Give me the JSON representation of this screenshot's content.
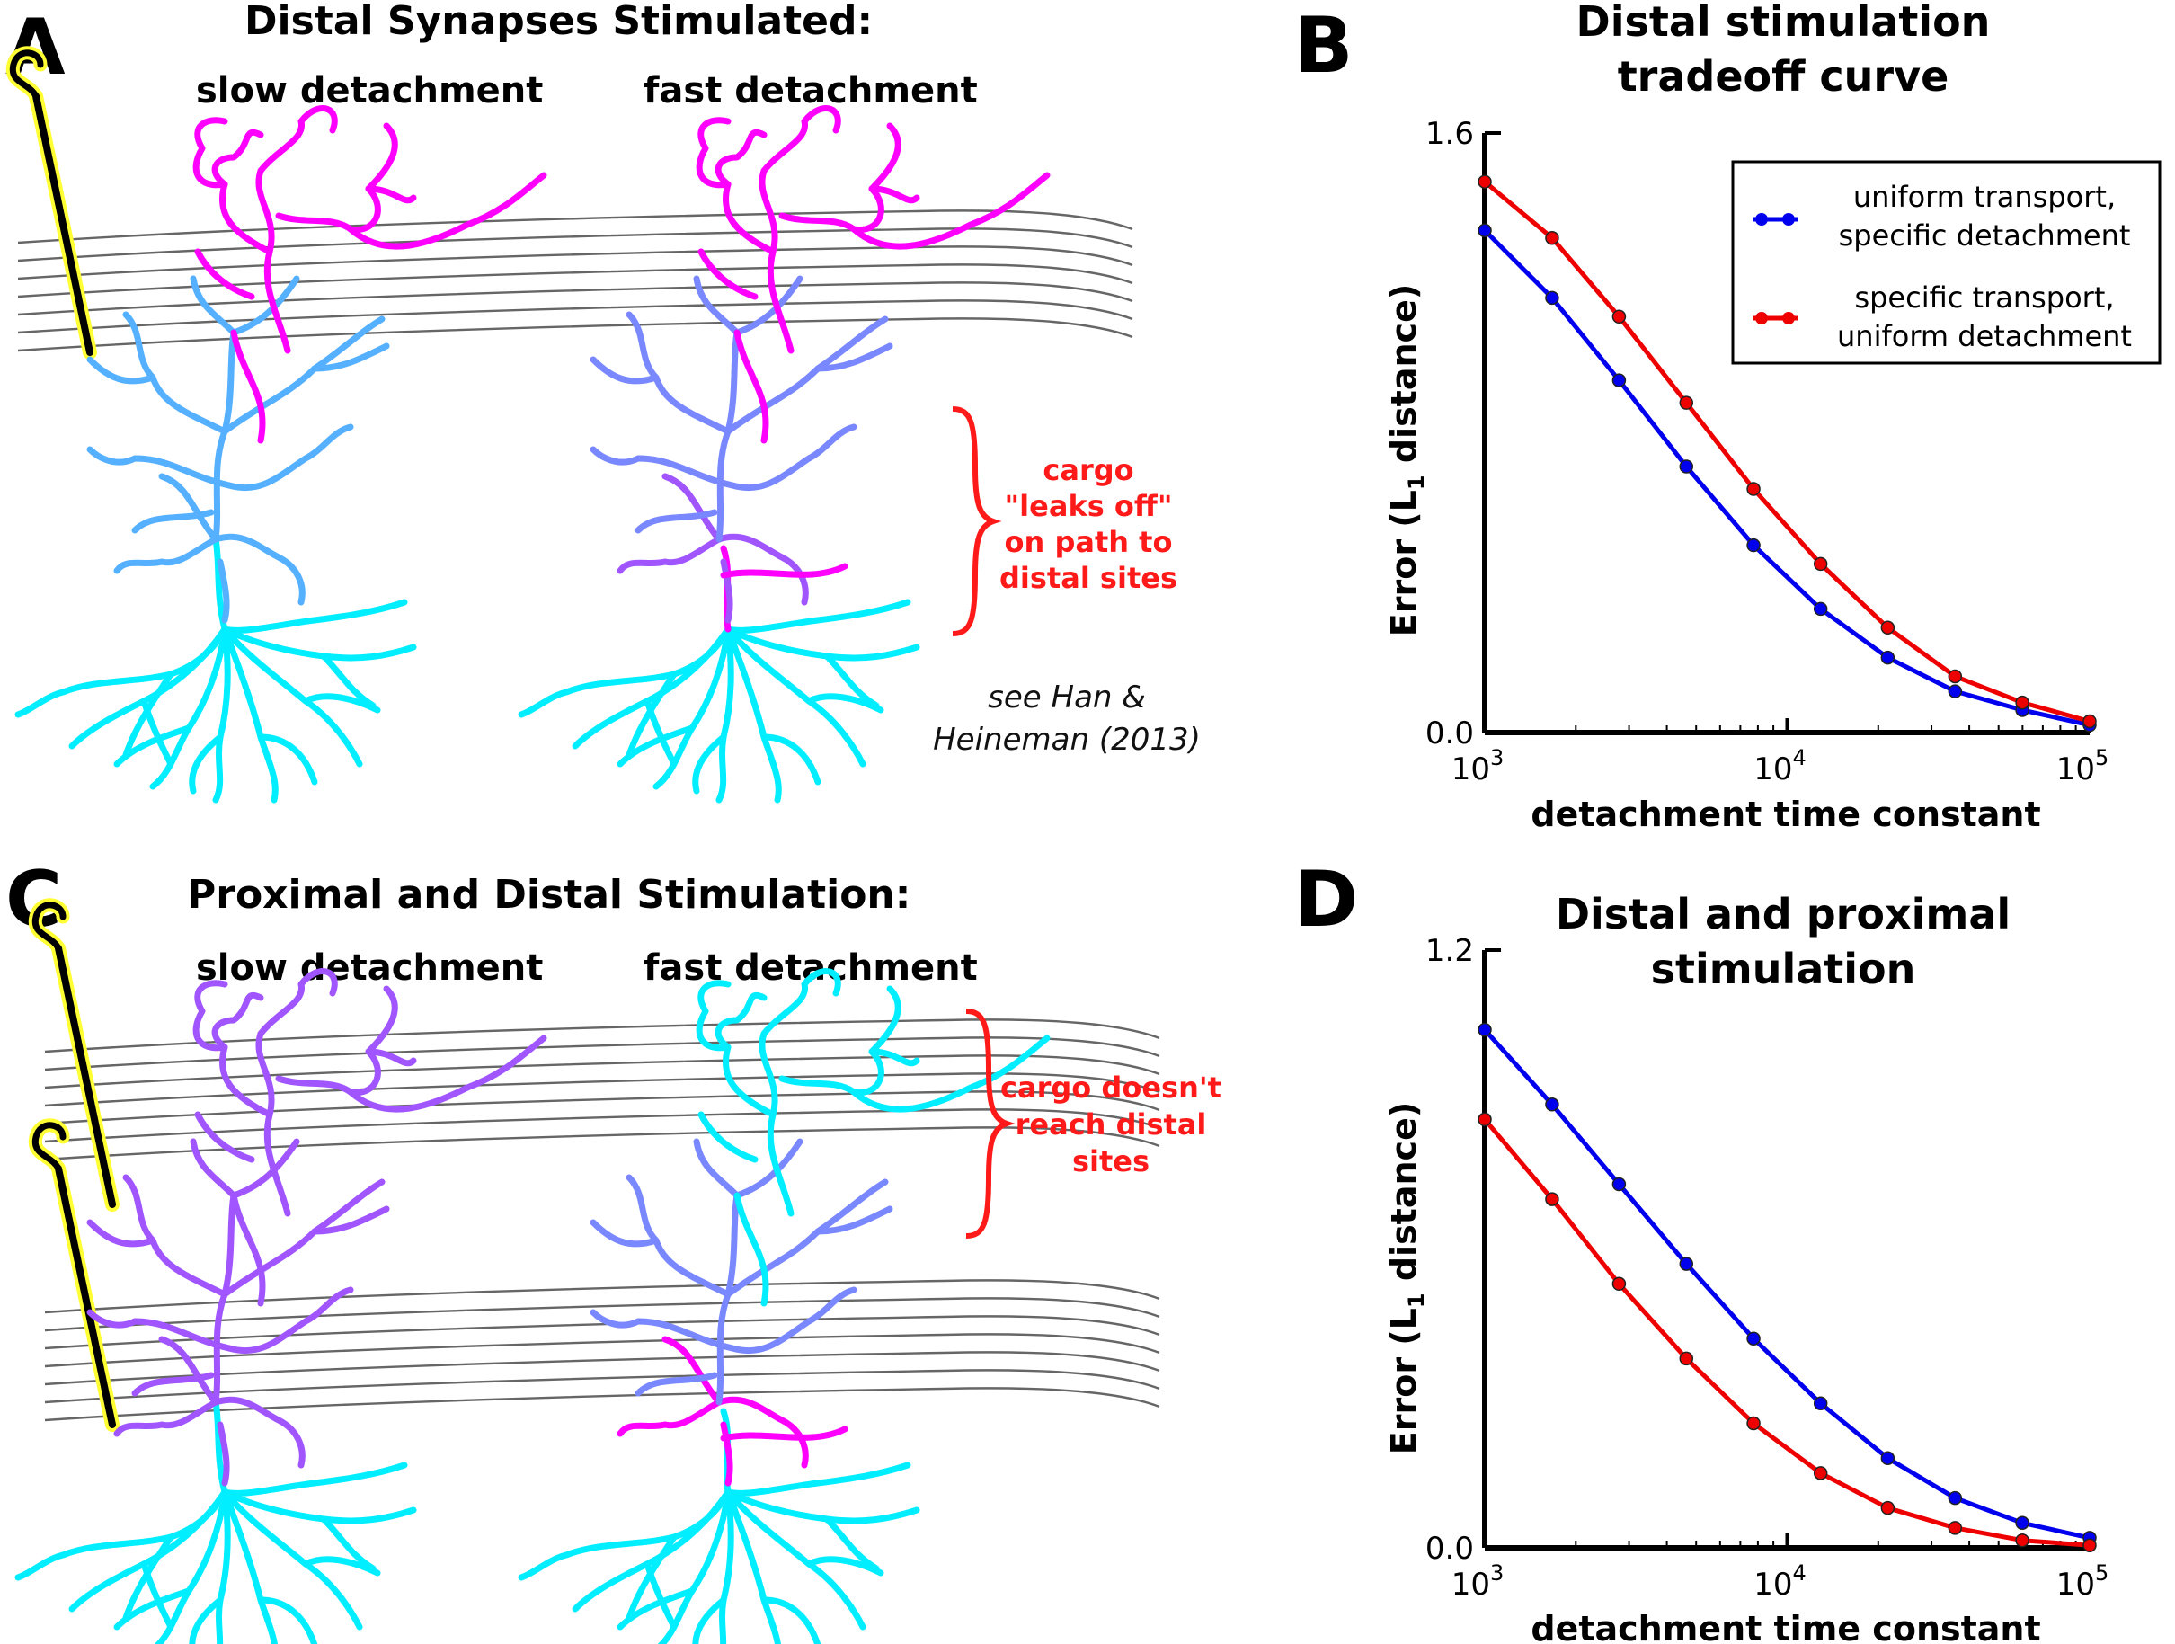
{
  "panels": {
    "A": {
      "letter": "A",
      "title": "Distal Synapses Stimulated:",
      "slow_label": "slow detachment",
      "fast_label": "fast detachment",
      "annotation": [
        "cargo",
        "\"leaks off\"",
        "on path to",
        "distal sites"
      ],
      "citation": [
        "see Han &",
        "Heineman (2013)"
      ]
    },
    "C": {
      "letter": "C",
      "title": "Proximal and Distal Stimulation:",
      "slow_label": "slow detachment",
      "fast_label": "fast detachment",
      "annotation": [
        "cargo doesn't",
        "reach distal",
        "sites"
      ]
    },
    "B": {
      "letter": "B"
    },
    "D": {
      "letter": "D"
    }
  },
  "colors": {
    "magenta": "#ff00ff",
    "violet": "#a055ff",
    "sky": "#55b0ff",
    "cyan": "#00eeff",
    "periwinkle": "#7a88ff",
    "annotation": "#ff1a1a",
    "electrode_outline": "#ffff33",
    "series_uniform_transport": "#0000ee",
    "series_specific_transport": "#ee0000"
  },
  "chart_data": [
    {
      "id": "B",
      "type": "line",
      "title": [
        "Distal stimulation",
        "tradeoff curve"
      ],
      "xlabel": "detachment time constant",
      "ylabel": "Error (L1 distance)",
      "xscale": "log",
      "xlim": [
        1000,
        100000
      ],
      "ylim": [
        0,
        1.6
      ],
      "yticks": [
        "0.0",
        "1.6"
      ],
      "xticks": [
        "10^3",
        "10^4",
        "10^5"
      ],
      "x": [
        1000,
        1670,
        2780,
        4640,
        7740,
        12900,
        21500,
        35900,
        59900,
        100000
      ],
      "legend": {
        "position": "upper right",
        "boxed": true
      },
      "series": [
        {
          "name": "uniform transport, specific detachment",
          "color": "#0000ee",
          "values": [
            1.34,
            1.16,
            0.94,
            0.71,
            0.5,
            0.33,
            0.2,
            0.11,
            0.06,
            0.02
          ]
        },
        {
          "name": "specific transport, uniform detachment",
          "color": "#ee0000",
          "values": [
            1.47,
            1.32,
            1.11,
            0.88,
            0.65,
            0.45,
            0.28,
            0.15,
            0.08,
            0.03
          ]
        }
      ]
    },
    {
      "id": "D",
      "type": "line",
      "title": [
        "Distal and proximal",
        "stimulation"
      ],
      "xlabel": "detachment time constant",
      "ylabel": "Error (L1 distance)",
      "xscale": "log",
      "xlim": [
        1000,
        100000
      ],
      "ylim": [
        0,
        1.2
      ],
      "yticks": [
        "0.0",
        "1.2"
      ],
      "xticks": [
        "10^3",
        "10^4",
        "10^5"
      ],
      "x": [
        1000,
        1670,
        2780,
        4640,
        7740,
        12900,
        21500,
        35900,
        59900,
        100000
      ],
      "series": [
        {
          "name": "uniform transport, specific detachment",
          "color": "#0000ee",
          "values": [
            1.04,
            0.89,
            0.73,
            0.57,
            0.42,
            0.29,
            0.18,
            0.1,
            0.05,
            0.02
          ]
        },
        {
          "name": "specific transport, uniform detachment",
          "color": "#ee0000",
          "values": [
            0.86,
            0.7,
            0.53,
            0.38,
            0.25,
            0.15,
            0.08,
            0.04,
            0.015,
            0.005
          ]
        }
      ]
    }
  ]
}
